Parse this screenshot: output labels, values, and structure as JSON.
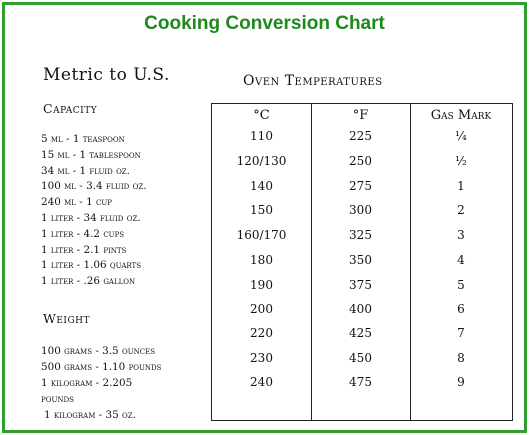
{
  "title": "Cooking Conversion Chart",
  "metric": {
    "heading": "Metric to U.S.",
    "capacity_heading": "Capacity",
    "capacity": [
      "5 ml - 1 teaspoon",
      "15 ml - 1 tablespoon",
      "34 ml - 1 fluid oz.",
      "100 ml - 3.4 fluid oz.",
      "240 ml - 1 cup",
      "1 liter - 34 fluid oz.",
      "1 liter - 4.2 cups",
      "1 liter - 2.1 pints",
      "1 liter - 1.06 quarts",
      "1 liter - .26 gallon"
    ],
    "weight_heading": "Weight",
    "weight": [
      "100 grams - 3.5 ounces",
      "500 grams - 1.10 pounds",
      "1 kilogram - 2.205",
      "pounds",
      "1 kilogram - 35 oz."
    ]
  },
  "oven": {
    "heading": "Oven Temperatures",
    "columns": [
      "°C",
      "°F",
      "Gas Mark"
    ],
    "rows": [
      [
        "110",
        "225",
        "¼"
      ],
      [
        "120/130",
        "250",
        "½"
      ],
      [
        "140",
        "275",
        "1"
      ],
      [
        "150",
        "300",
        "2"
      ],
      [
        "160/170",
        "325",
        "3"
      ],
      [
        "180",
        "350",
        "4"
      ],
      [
        "190",
        "375",
        "5"
      ],
      [
        "200",
        "400",
        "6"
      ],
      [
        "220",
        "425",
        "7"
      ],
      [
        "230",
        "450",
        "8"
      ],
      [
        "240",
        "475",
        "9"
      ]
    ]
  }
}
